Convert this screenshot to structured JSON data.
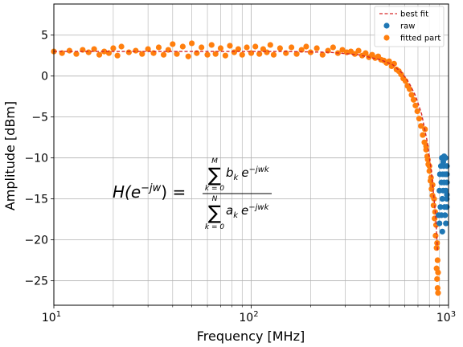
{
  "chart_data": {
    "type": "scatter",
    "xlabel": "Frequency [MHz]",
    "ylabel": "Amplitude [dBm]",
    "xscale": "log",
    "xlim": [
      10,
      1000
    ],
    "ylim": [
      -28,
      8.8
    ],
    "x_ticks": [
      10,
      100,
      1000
    ],
    "x_tick_labels": [
      {
        "base": "10",
        "exp": "1"
      },
      {
        "base": "10",
        "exp": "2"
      },
      {
        "base": "10",
        "exp": "3"
      }
    ],
    "y_ticks": [
      -25,
      -20,
      -15,
      -10,
      -5,
      0,
      5
    ],
    "y_tick_labels": [
      "−25",
      "−20",
      "−15",
      "−10",
      "−5",
      "0",
      "5"
    ],
    "grid": true,
    "legend_position": "top-right",
    "series": [
      {
        "name": "best fit",
        "kind": "line",
        "style": "dashed",
        "color": "#d62728",
        "x": [
          10,
          20,
          40,
          80,
          150,
          250,
          350,
          450,
          520,
          580,
          630,
          680,
          730,
          780,
          820,
          860,
          880
        ],
        "y": [
          3.0,
          3.0,
          3.0,
          3.0,
          3.0,
          2.9,
          2.6,
          2.0,
          1.4,
          0.4,
          -0.8,
          -2.4,
          -4.6,
          -8.0,
          -11.8,
          -17.0,
          -21.5
        ]
      },
      {
        "name": "raw",
        "kind": "scatter",
        "color": "#1f77b4",
        "x": [
          890,
          900,
          905,
          910,
          915,
          920,
          925,
          930,
          935,
          940,
          945,
          950,
          955,
          960,
          965,
          970,
          975,
          980,
          985,
          990,
          995,
          900,
          920,
          940,
          960,
          980,
          930,
          950,
          970,
          990
        ],
        "y": [
          -17,
          -14,
          -12,
          -16,
          -11,
          -13,
          -10,
          -15,
          -12,
          -14,
          -11,
          -13,
          -16,
          -12,
          -10,
          -14,
          -12,
          -15,
          -11,
          -13,
          -12,
          -18,
          -17,
          -10.5,
          -17,
          -16,
          -19,
          -9.8,
          -18,
          -14.5
        ]
      },
      {
        "name": "fitted part",
        "kind": "scatter",
        "color": "#ff7f0e",
        "x": [
          10,
          11,
          12,
          13,
          14,
          15,
          16,
          17,
          18,
          19,
          20,
          21,
          22,
          24,
          26,
          28,
          30,
          32,
          34,
          36,
          38,
          40,
          42,
          45,
          48,
          50,
          53,
          56,
          60,
          63,
          66,
          70,
          74,
          78,
          82,
          86,
          90,
          95,
          100,
          105,
          110,
          115,
          120,
          125,
          130,
          140,
          150,
          160,
          170,
          180,
          190,
          200,
          215,
          230,
          245,
          260,
          275,
          290,
          305,
          320,
          335,
          350,
          365,
          380,
          395,
          410,
          425,
          440,
          455,
          470,
          485,
          500,
          515,
          530,
          545,
          560,
          575,
          590,
          605,
          620,
          635,
          650,
          665,
          680,
          695,
          710,
          725,
          740,
          755,
          770,
          785,
          800,
          815,
          830,
          845,
          855,
          865,
          875,
          880,
          885,
          760,
          770,
          780,
          790,
          800,
          810,
          820,
          830,
          840,
          850,
          860,
          870,
          880,
          885,
          870,
          875
        ],
        "y": [
          3.0,
          2.8,
          3.1,
          2.7,
          3.2,
          2.9,
          3.3,
          2.6,
          3.0,
          2.8,
          3.4,
          2.5,
          3.6,
          2.9,
          3.1,
          2.7,
          3.3,
          2.8,
          3.5,
          2.6,
          3.2,
          3.9,
          2.7,
          3.6,
          2.4,
          4.0,
          2.8,
          3.5,
          2.6,
          3.8,
          2.7,
          3.4,
          2.5,
          3.7,
          2.9,
          3.3,
          2.6,
          3.5,
          2.8,
          3.6,
          2.7,
          3.3,
          2.9,
          3.8,
          2.6,
          3.4,
          2.8,
          3.5,
          2.7,
          3.2,
          3.6,
          2.9,
          3.4,
          2.6,
          3.1,
          3.5,
          2.8,
          3.2,
          2.9,
          3.0,
          2.7,
          3.1,
          2.5,
          2.8,
          2.3,
          2.6,
          2.2,
          2.4,
          2.0,
          1.9,
          1.6,
          1.8,
          1.2,
          1.5,
          0.8,
          0.6,
          0.2,
          -0.3,
          -0.6,
          -1.2,
          -1.6,
          -2.3,
          -2.9,
          -3.6,
          -4.3,
          -5.2,
          -6.1,
          -7.2,
          -8.1,
          -9.0,
          -10.2,
          -11.0,
          -12.4,
          -13.3,
          -15.0,
          -16.6,
          -18.2,
          -20.4,
          -22.5,
          -24.0,
          -6.5,
          -8.6,
          -9.8,
          -10.8,
          -11.6,
          -12.8,
          -13.8,
          -14.6,
          -15.8,
          -17.4,
          -19.5,
          -21.0,
          -25.9,
          -26.5,
          -23.5,
          -24.8
        ]
      }
    ],
    "annotation": {
      "lhs": "H(e",
      "lhs_exp": "−jw",
      "lhs_close": ") =",
      "num_sum_upper": "M",
      "num_sum_lower": "k = 0",
      "num_coef": "b",
      "num_sub": "k",
      "num_exp_base": "e",
      "num_exp": "−jwk",
      "den_sum_upper": "N",
      "den_sum_lower": "k = 0",
      "den_coef": "a",
      "den_sub": "k",
      "den_exp_base": "e",
      "den_exp": "−jwk",
      "sum_symbol": "∑"
    }
  }
}
